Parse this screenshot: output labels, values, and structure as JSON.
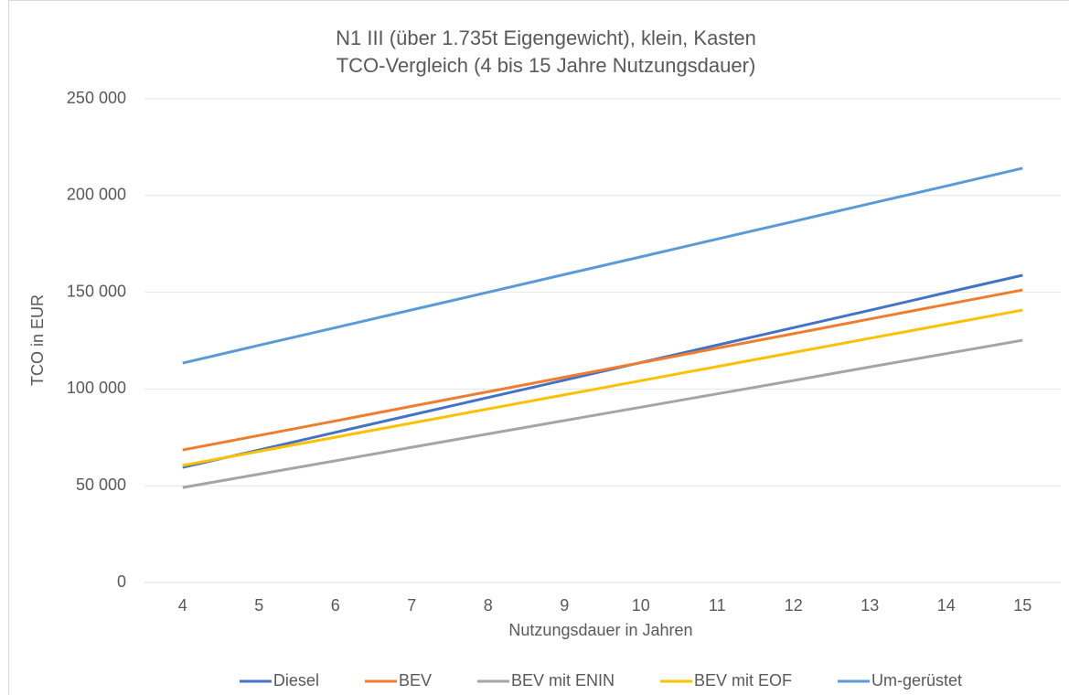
{
  "chart_data": {
    "type": "line",
    "title": "N1 III (über 1.735t Eigengewicht), klein, Kasten",
    "subtitle": "TCO-Vergleich (4 bis 15 Jahre Nutzungsdauer)",
    "x_label": "Nutzungsdauer  in Jahren",
    "y_label": "TCO in EUR",
    "categories": [
      "4",
      "5",
      "6",
      "7",
      "8",
      "9",
      "10",
      "11",
      "12",
      "13",
      "14",
      "15"
    ],
    "series": [
      {
        "name": "Diesel",
        "color": "#4472c4",
        "values": [
          59500,
          68500,
          77600,
          86600,
          95600,
          104600,
          113700,
          122700,
          131700,
          140700,
          149800,
          158800
        ]
      },
      {
        "name": "BEV",
        "color": "#ed7d31",
        "values": [
          68500,
          76000,
          83500,
          91100,
          98600,
          106100,
          113600,
          121100,
          128600,
          136200,
          143700,
          151200
        ]
      },
      {
        "name": "BEV mit ENIN",
        "color": "#a5a5a5",
        "values": [
          49100,
          56000,
          62900,
          69900,
          76800,
          83700,
          90600,
          97500,
          104400,
          111400,
          118300,
          125200
        ]
      },
      {
        "name": "BEV mit EOF",
        "color": "#ffc000",
        "values": [
          60500,
          67800,
          75100,
          82400,
          89700,
          97000,
          104300,
          111600,
          118900,
          126200,
          133500,
          140800
        ]
      },
      {
        "name": "Um-gerüstet",
        "color": "#5b9bd5",
        "values": [
          113400,
          122600,
          131700,
          140900,
          150000,
          159200,
          168300,
          177500,
          186600,
          195800,
          204900,
          214100
        ]
      }
    ],
    "ylim": [
      0,
      250000
    ],
    "yticks": [
      0,
      {
        "value": 50000,
        "label": "50 000"
      },
      {
        "value": 100000,
        "label": "100 000"
      },
      {
        "value": 150000,
        "label": "150 000"
      },
      {
        "value": 200000,
        "label": "200 000"
      },
      {
        "value": 250000,
        "label": "250 000"
      }
    ],
    "grid": true,
    "legend": "bottom"
  }
}
